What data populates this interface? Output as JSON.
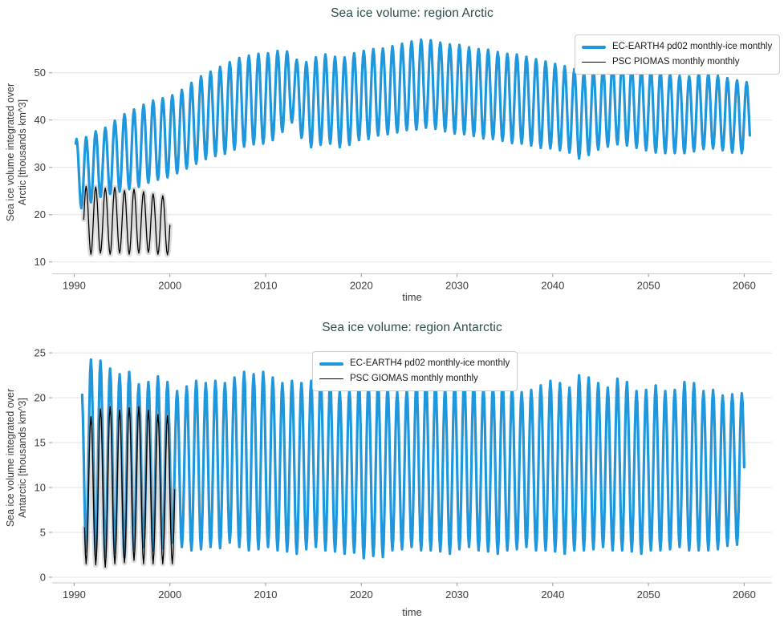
{
  "figure": {
    "background": "#ffffff",
    "title_color": "#2E4C4F",
    "grid_color": "#e4e4e4",
    "spine_color": "#c8c8c8",
    "tick_mark_color": "#999999",
    "tick_text_color": "#3b3b3b"
  },
  "chart_data": [
    {
      "type": "line",
      "title": "Sea ice volume: region Arctic",
      "xlabel": "time",
      "ylabel_lines": [
        "Sea ice volume integrated over",
        "Arctic [thousands km^3]"
      ],
      "x_ticks": [
        1990,
        2000,
        2010,
        2020,
        2030,
        2040,
        2050,
        2060
      ],
      "y_ticks": [
        10,
        20,
        30,
        40,
        50
      ],
      "xlim": [
        1987.7,
        2062.9
      ],
      "ylim": [
        7.5,
        58.6
      ],
      "grid": "horizontal-only",
      "legend_position": "upper-right",
      "series": [
        {
          "name": "EC-EARTH4 pd02 monthly-ice monthly",
          "color": "#1F97DC",
          "line_width": 3.2,
          "cadence": "monthly",
          "peak_month": 3,
          "start": {
            "year": 1990,
            "month": 2
          },
          "end": {
            "year": 2060,
            "month": 7
          },
          "envelope_note": "per-year [year, annual max, annual min] in thousands km^3",
          "envelope": [
            [
              1990,
              36,
              21
            ],
            [
              1991,
              36,
              21.5
            ],
            [
              1992,
              37.5,
              23
            ],
            [
              1993,
              38,
              24
            ],
            [
              1994,
              39.5,
              24.5
            ],
            [
              1995,
              41,
              25
            ],
            [
              1996,
              42,
              25.5
            ],
            [
              1997,
              43,
              26
            ],
            [
              1998,
              44,
              27
            ],
            [
              1999,
              44.5,
              27.5
            ],
            [
              2000,
              45,
              28
            ],
            [
              2001,
              46,
              29
            ],
            [
              2002,
              47.5,
              30
            ],
            [
              2003,
              49,
              31
            ],
            [
              2004,
              50,
              32
            ],
            [
              2005,
              51,
              32.5
            ],
            [
              2006,
              52,
              33
            ],
            [
              2007,
              53,
              34
            ],
            [
              2008,
              53.5,
              34.5
            ],
            [
              2009,
              54,
              35
            ],
            [
              2010,
              54,
              35
            ],
            [
              2011,
              54.5,
              36
            ],
            [
              2012,
              55,
              38
            ],
            [
              2013,
              53,
              40
            ],
            [
              2014,
              52,
              35
            ],
            [
              2015,
              53,
              34
            ],
            [
              2016,
              54,
              35
            ],
            [
              2017,
              53.5,
              35
            ],
            [
              2018,
              53,
              34
            ],
            [
              2019,
              54,
              35
            ],
            [
              2020,
              54.5,
              36
            ],
            [
              2021,
              55,
              36
            ],
            [
              2022,
              55,
              37
            ],
            [
              2023,
              55.5,
              37
            ],
            [
              2024,
              56,
              37.5
            ],
            [
              2025,
              56.5,
              38
            ],
            [
              2026,
              57,
              38
            ],
            [
              2027,
              57,
              38.5
            ],
            [
              2028,
              56.5,
              38
            ],
            [
              2029,
              56,
              37.5
            ],
            [
              2030,
              56,
              37
            ],
            [
              2031,
              55.5,
              37
            ],
            [
              2032,
              55,
              36.5
            ],
            [
              2033,
              55,
              36
            ],
            [
              2034,
              54.5,
              36
            ],
            [
              2035,
              54,
              35.5
            ],
            [
              2036,
              54,
              35
            ],
            [
              2037,
              53.5,
              35
            ],
            [
              2038,
              53,
              34.5
            ],
            [
              2039,
              52.5,
              34
            ],
            [
              2040,
              52,
              34
            ],
            [
              2041,
              51.5,
              33.5
            ],
            [
              2042,
              51,
              33
            ],
            [
              2043,
              50,
              31.5
            ],
            [
              2044,
              50.5,
              33
            ],
            [
              2045,
              51,
              34
            ],
            [
              2046,
              52,
              34.5
            ],
            [
              2047,
              53,
              35
            ],
            [
              2048,
              52,
              34.5
            ],
            [
              2049,
              51,
              34
            ],
            [
              2050,
              51,
              33.5
            ],
            [
              2051,
              50.5,
              33
            ],
            [
              2052,
              50,
              33
            ],
            [
              2053,
              49.5,
              33
            ],
            [
              2054,
              49,
              33
            ],
            [
              2055,
              50,
              33.5
            ],
            [
              2056,
              50,
              34
            ],
            [
              2057,
              49.5,
              34
            ],
            [
              2058,
              49,
              33.5
            ],
            [
              2059,
              48.5,
              33
            ],
            [
              2060,
              48,
              33
            ]
          ]
        },
        {
          "name": "PSC PIOMAS monthly monthly",
          "color": "#000000",
          "line_width": 1.3,
          "halo_color": "rgba(130,130,130,0.28)",
          "cadence": "monthly",
          "peak_month": 3,
          "start": {
            "year": 1991,
            "month": 0
          },
          "end": {
            "year": 2000,
            "month": 0
          },
          "envelope": [
            [
              1991,
              26,
              12
            ],
            [
              1992,
              26,
              11.5
            ],
            [
              1993,
              25.5,
              12
            ],
            [
              1994,
              26,
              11.5
            ],
            [
              1995,
              25,
              12
            ],
            [
              1996,
              25.5,
              11.5
            ],
            [
              1997,
              25,
              12
            ],
            [
              1998,
              24.5,
              12
            ],
            [
              1999,
              24,
              11.5
            ],
            [
              2000,
              24,
              11.5
            ]
          ]
        }
      ]
    },
    {
      "type": "line",
      "title": "Sea ice volume: region Antarctic",
      "xlabel": "time",
      "ylabel_lines": [
        "Sea ice volume integrated over",
        "Antarctic [thousands km^3]"
      ],
      "x_ticks": [
        1990,
        2000,
        2010,
        2020,
        2030,
        2040,
        2050,
        2060
      ],
      "y_ticks": [
        0,
        5,
        10,
        15,
        20,
        25
      ],
      "xlim": [
        1987.7,
        2062.9
      ],
      "ylim": [
        -0.63,
        25.9
      ],
      "grid": "horizontal-only",
      "legend_position": "upper-center-left",
      "series": [
        {
          "name": "EC-EARTH4 pd02 monthly-ice monthly",
          "color": "#1F97DC",
          "line_width": 3.2,
          "cadence": "monthly",
          "peak_month": 9,
          "start": {
            "year": 1990,
            "month": 10
          },
          "end": {
            "year": 2060,
            "month": 0
          },
          "envelope_note": "per-year [year, annual max, annual min] in thousands km^3",
          "envelope": [
            [
              1990,
              12,
              3
            ],
            [
              1991,
              23.5,
              3
            ],
            [
              1992,
              24.5,
              2.5
            ],
            [
              1993,
              24,
              2
            ],
            [
              1994,
              23,
              3
            ],
            [
              1995,
              22.5,
              2
            ],
            [
              1996,
              23,
              3
            ],
            [
              1997,
              21,
              3.5
            ],
            [
              1998,
              22,
              3
            ],
            [
              1999,
              22.5,
              3
            ],
            [
              2000,
              21.5,
              4
            ],
            [
              2001,
              20.5,
              3.5
            ],
            [
              2002,
              21.5,
              3
            ],
            [
              2003,
              22,
              3
            ],
            [
              2004,
              21.5,
              3.5
            ],
            [
              2005,
              22,
              3
            ],
            [
              2006,
              21.5,
              4
            ],
            [
              2007,
              22.5,
              3.5
            ],
            [
              2008,
              23,
              3
            ],
            [
              2009,
              22.5,
              3
            ],
            [
              2010,
              23,
              3.5
            ],
            [
              2011,
              22,
              3
            ],
            [
              2012,
              21.5,
              3
            ],
            [
              2013,
              22,
              2.5
            ],
            [
              2014,
              21.5,
              3
            ],
            [
              2015,
              22,
              3.5
            ],
            [
              2016,
              22.5,
              3
            ],
            [
              2017,
              21.5,
              3
            ],
            [
              2018,
              20.5,
              2.5
            ],
            [
              2019,
              21,
              3
            ],
            [
              2020,
              22,
              2
            ],
            [
              2021,
              21.5,
              2.5
            ],
            [
              2022,
              22,
              2
            ],
            [
              2023,
              21,
              3
            ],
            [
              2024,
              20.5,
              3
            ],
            [
              2025,
              21,
              3.5
            ],
            [
              2026,
              22,
              3
            ],
            [
              2027,
              22.5,
              3
            ],
            [
              2028,
              21.5,
              3
            ],
            [
              2029,
              21,
              2.5
            ],
            [
              2030,
              22,
              3
            ],
            [
              2031,
              22.5,
              3.5
            ],
            [
              2032,
              21.5,
              3
            ],
            [
              2033,
              21,
              3
            ],
            [
              2034,
              21.5,
              2.5
            ],
            [
              2035,
              22,
              3
            ],
            [
              2036,
              21,
              3
            ],
            [
              2037,
              20.5,
              3.5
            ],
            [
              2038,
              21,
              3
            ],
            [
              2039,
              21.5,
              3
            ],
            [
              2040,
              22,
              3
            ],
            [
              2041,
              21.5,
              2.5
            ],
            [
              2042,
              21,
              3
            ],
            [
              2043,
              23,
              3
            ],
            [
              2044,
              22,
              3
            ],
            [
              2045,
              21.5,
              3.5
            ],
            [
              2046,
              21,
              3
            ],
            [
              2047,
              22.5,
              3
            ],
            [
              2048,
              21.5,
              3
            ],
            [
              2049,
              20.5,
              2.5
            ],
            [
              2050,
              21,
              3
            ],
            [
              2051,
              21.5,
              3
            ],
            [
              2052,
              20.5,
              3
            ],
            [
              2053,
              21,
              3.5
            ],
            [
              2054,
              22,
              3
            ],
            [
              2055,
              21.5,
              3
            ],
            [
              2056,
              20.5,
              3
            ],
            [
              2057,
              21,
              3
            ],
            [
              2058,
              20,
              3.5
            ],
            [
              2059,
              20.5,
              3.5
            ],
            [
              2060,
              20.5,
              4
            ]
          ]
        },
        {
          "name": "PSC GIOMAS monthly monthly",
          "color": "#000000",
          "line_width": 1.3,
          "halo_color": "rgba(130,130,130,0.28)",
          "cadence": "monthly",
          "peak_month": 9,
          "start": {
            "year": 1991,
            "month": 1
          },
          "end": {
            "year": 2000,
            "month": 6
          },
          "envelope": [
            [
              1991,
              17.5,
              1.5
            ],
            [
              1992,
              18,
              1.5
            ],
            [
              1993,
              19,
              1
            ],
            [
              1994,
              19,
              1.5
            ],
            [
              1995,
              18.5,
              1.5
            ],
            [
              1996,
              19,
              2
            ],
            [
              1997,
              19,
              1.5
            ],
            [
              1998,
              18.5,
              1.5
            ],
            [
              1999,
              18,
              1.5
            ],
            [
              2000,
              18,
              1.5
            ]
          ]
        }
      ]
    }
  ]
}
